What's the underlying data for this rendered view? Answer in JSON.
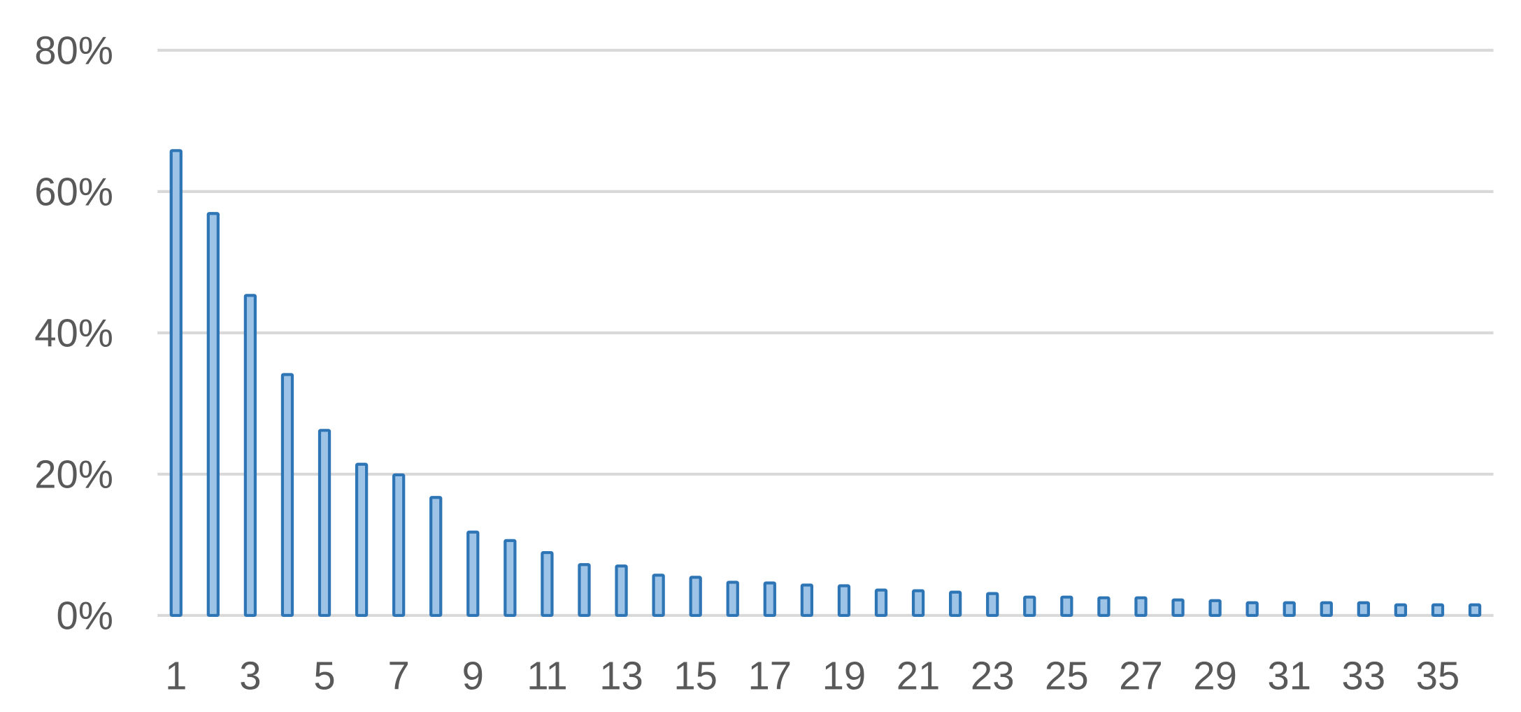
{
  "chart_data": {
    "type": "bar",
    "title": "",
    "xlabel": "",
    "ylabel": "",
    "categories": [
      1,
      2,
      3,
      4,
      5,
      6,
      7,
      8,
      9,
      10,
      11,
      12,
      13,
      14,
      15,
      16,
      17,
      18,
      19,
      20,
      21,
      22,
      23,
      24,
      25,
      26,
      27,
      28,
      29,
      30,
      31,
      32,
      33,
      34,
      35,
      36
    ],
    "x_tick_labels": [
      "1",
      "3",
      "5",
      "7",
      "9",
      "11",
      "13",
      "15",
      "17",
      "19",
      "21",
      "23",
      "25",
      "27",
      "29",
      "31",
      "33",
      "35"
    ],
    "values": [
      65.8,
      56.9,
      45.3,
      34.1,
      26.2,
      21.4,
      19.9,
      16.7,
      11.8,
      10.6,
      8.9,
      7.2,
      7.0,
      5.7,
      5.4,
      4.7,
      4.6,
      4.3,
      4.2,
      3.6,
      3.5,
      3.3,
      3.1,
      2.6,
      2.6,
      2.5,
      2.5,
      2.2,
      2.1,
      1.8,
      1.8,
      1.8,
      1.8,
      1.5,
      1.5,
      1.5
    ],
    "value_unit": "%",
    "ylim": [
      0,
      80
    ],
    "y_ticks": [
      "0%",
      "20%",
      "40%",
      "60%",
      "80%"
    ],
    "grid": true,
    "legend": "none",
    "colors": {
      "bar_fill": "#9dc3e6",
      "bar_edge": "#2e75b6",
      "grid": "#d9d9d9",
      "text": "#595959"
    }
  }
}
